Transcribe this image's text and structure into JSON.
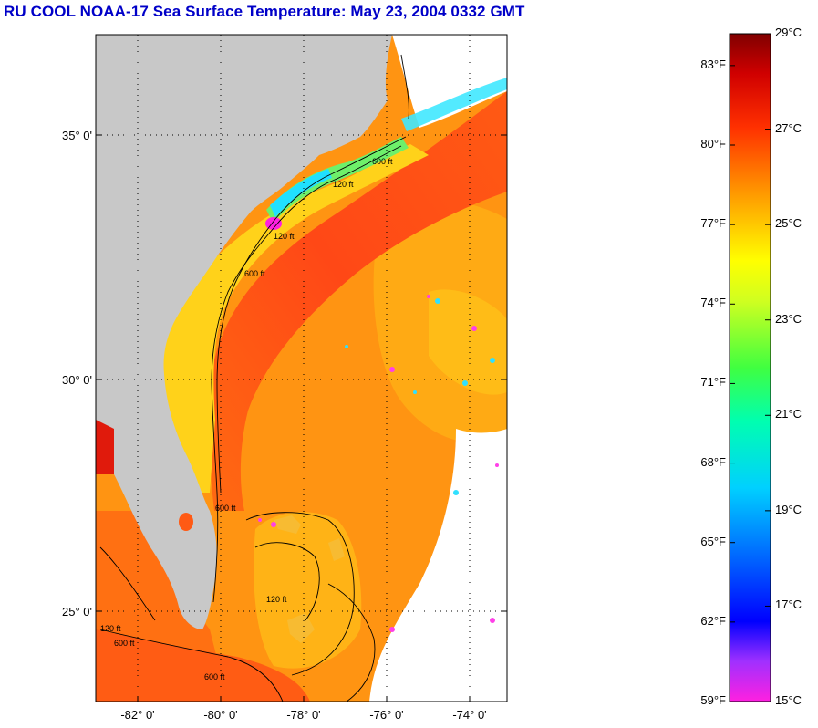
{
  "title": "RU COOL  NOAA-17  Sea Surface Temperature:  May 23, 2004 0332 GMT",
  "map": {
    "lat_labels": [
      "35° 0'",
      "30° 0'",
      "25° 0'"
    ],
    "lon_labels": [
      "-82° 0'",
      "-80° 0'",
      "-78° 0'",
      "-76° 0'",
      "-74° 0'"
    ],
    "contour_labels": [
      "120 ft",
      "600 ft",
      "120 ft",
      "600 ft",
      "600 ft",
      "120 ft",
      "600 ft",
      "120 ft",
      "600 ft"
    ],
    "colors": {
      "land": "#c8c8c8",
      "gulf_stream": "#ff4a14",
      "warm": "#ff8a10",
      "shelf": "#ffd21a",
      "cool": "#20f0ff",
      "cold": "#ff20e0"
    }
  },
  "colorbar": {
    "fahrenheit_labels": [
      "83°F",
      "80°F",
      "77°F",
      "74°F",
      "71°F",
      "68°F",
      "65°F",
      "62°F",
      "59°F"
    ],
    "celsius_labels": [
      "29°C",
      "27°C",
      "25°C",
      "23°C",
      "21°C",
      "19°C",
      "17°C",
      "15°C"
    ],
    "range_c": [
      15,
      29
    ],
    "range_f": [
      59,
      84.2
    ]
  }
}
